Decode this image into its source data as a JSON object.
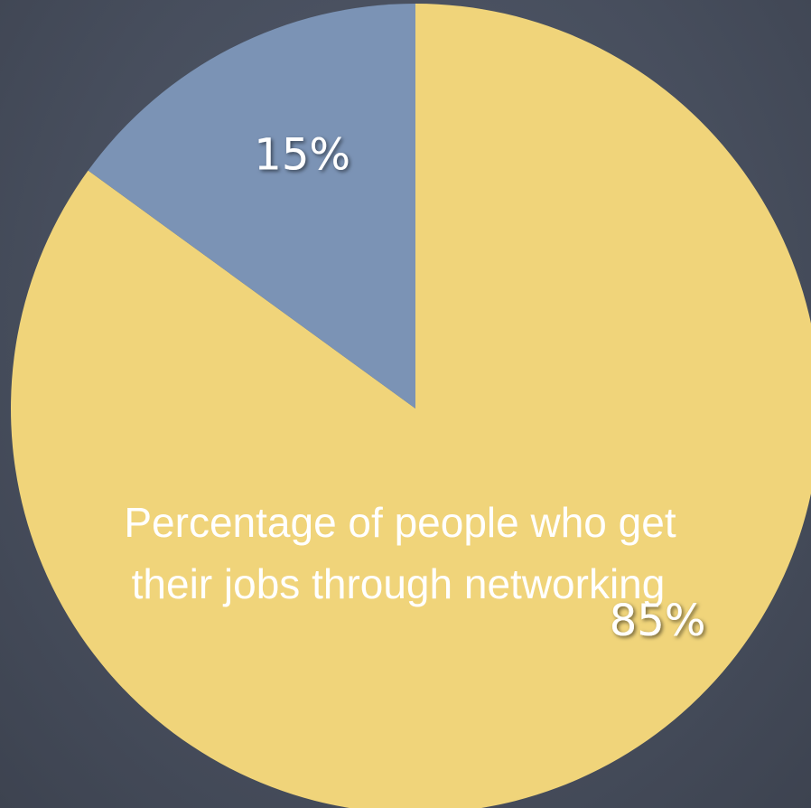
{
  "chart_data": {
    "type": "pie",
    "title": "Percentage of people who get their jobs through networking",
    "slices": [
      {
        "label": "85%",
        "value": 85,
        "color": "#f0d47a"
      },
      {
        "label": "15%",
        "value": 15,
        "color": "#7b93b5"
      }
    ],
    "start": "12 o'clock",
    "direction": "clockwise"
  },
  "colors": {
    "background": "#4a5262"
  }
}
